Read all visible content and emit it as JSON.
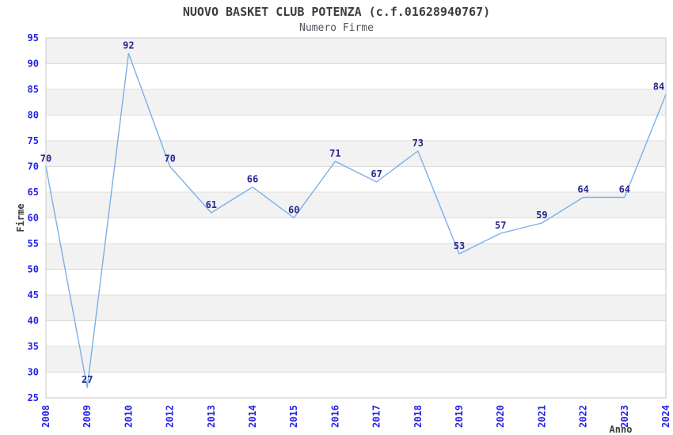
{
  "chart_data": {
    "type": "line",
    "title": "NUOVO BASKET CLUB POTENZA (c.f.01628940767)",
    "subtitle": "Numero Firme",
    "xlabel": "Anno",
    "ylabel": "Firme",
    "categories": [
      "2008",
      "2009",
      "2010",
      "2012",
      "2013",
      "2014",
      "2015",
      "2016",
      "2017",
      "2018",
      "2019",
      "2020",
      "2021",
      "2022",
      "2023",
      "2024"
    ],
    "values": [
      70,
      27,
      92,
      70,
      61,
      66,
      60,
      71,
      67,
      73,
      53,
      57,
      59,
      64,
      64,
      84
    ],
    "ylim": [
      25,
      95
    ],
    "ytick_step": 5,
    "grid": "horizontal",
    "bands": "alternating-5-unit",
    "legend": false,
    "data_labels": true,
    "colors": {
      "line": "#7bafe8",
      "band_fill": "#f2f2f2",
      "gridline": "#dcdcdc",
      "plot_border": "#d0d0d0",
      "tick_label": "#2323e6",
      "data_label": "#26268f",
      "title": "#3d3d3d",
      "subtitle": "#52525c",
      "axis_title": "#3d3d3d",
      "background": "#ffffff"
    }
  }
}
